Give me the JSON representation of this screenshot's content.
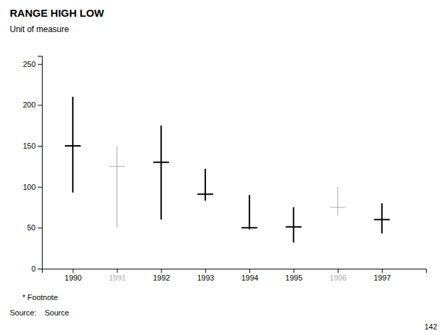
{
  "chart_data": {
    "type": "range",
    "title": "RANGE HIGH LOW",
    "subtitle": "Unit of measure",
    "annotations": [
      "*    Footnote",
      "Source:",
      "Source",
      "142"
    ],
    "x": [
      1990,
      1991,
      1992,
      1993,
      1994,
      1995,
      1996,
      1997
    ],
    "high": [
      210,
      150,
      175,
      122,
      90,
      75,
      100,
      80
    ],
    "low": [
      93,
      50,
      60,
      83,
      48,
      32,
      65,
      43
    ],
    "values": [
      150,
      125,
      130,
      91,
      50,
      51,
      75,
      60
    ],
    "colors": [
      "#000000",
      "#aaaaaa",
      "#000000",
      "#000000",
      "#000000",
      "#000000",
      "#aaaaaa",
      "#000000"
    ],
    "xlim": [
      1989.3,
      1998.0
    ],
    "xticks": [
      1990,
      1991,
      1992,
      1993,
      1994,
      1995,
      1996,
      1997
    ],
    "ylim": [
      0,
      260
    ],
    "yticks": [
      0,
      50,
      100,
      150,
      200,
      250
    ],
    "grid": false
  }
}
